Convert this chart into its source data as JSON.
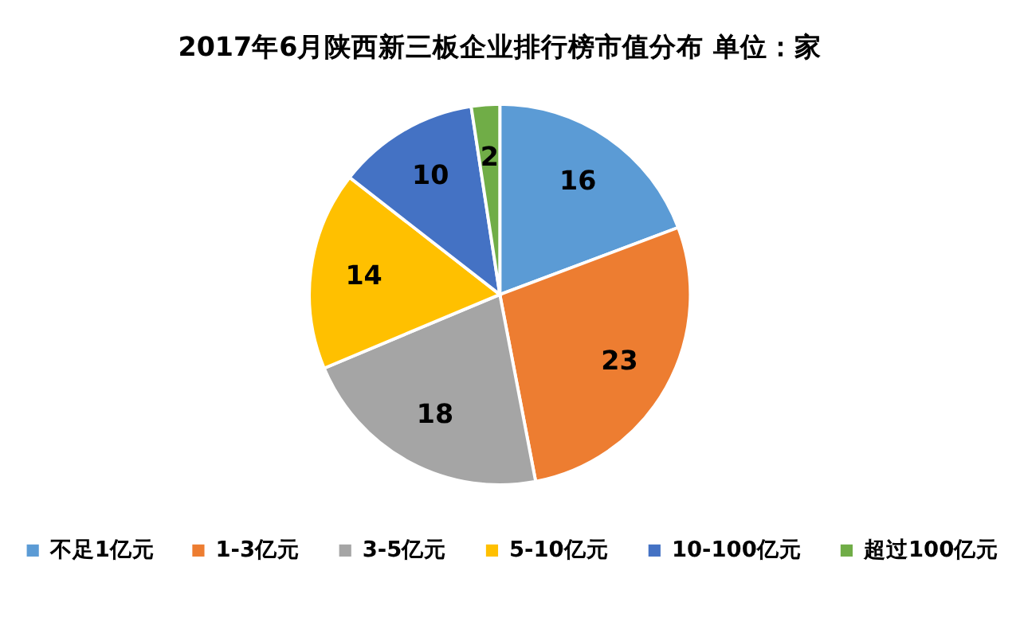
{
  "chart_data": {
    "type": "pie",
    "title": "2017年6月陕西新三板企业排行榜市值分布  单位：家",
    "categories": [
      "不足1亿元",
      "1-3亿元",
      "3-5亿元",
      "5-10亿元",
      "10-100亿元",
      "超过100亿元"
    ],
    "values": [
      16,
      23,
      18,
      14,
      10,
      2
    ],
    "colors": [
      "#5b9bd5",
      "#ed7d31",
      "#a5a5a5",
      "#ffc000",
      "#4472c4",
      "#70ad47"
    ],
    "data_labels": true,
    "legend": "bottom"
  }
}
